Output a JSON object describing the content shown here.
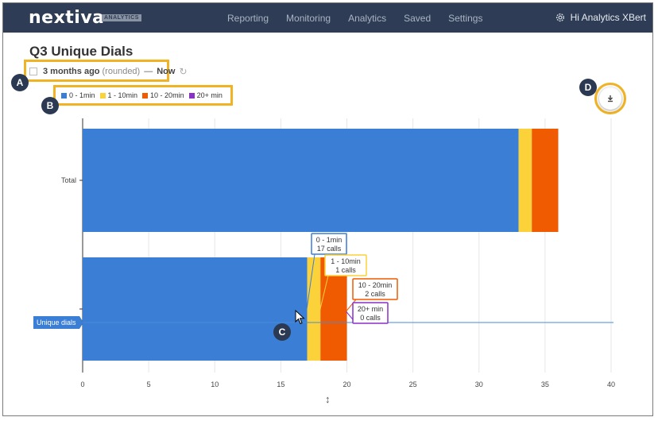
{
  "app": {
    "logo": "nextiva",
    "logo_badge": "ANALYTICS",
    "nav": [
      "Reporting",
      "Monitoring",
      "Analytics",
      "Saved",
      "Settings"
    ],
    "user": "Hi Analytics XBert"
  },
  "page": {
    "title": "Q3 Unique Dials",
    "date_from": "3 months ago",
    "date_note": "(rounded)",
    "date_sep": "—",
    "date_to": "Now"
  },
  "callouts": {
    "a": "A",
    "b": "B",
    "c": "C",
    "d": "D"
  },
  "colors": {
    "s0": "#3a7fd5",
    "s1": "#fcd23a",
    "s2": "#f05a00",
    "s3": "#8b2fc9",
    "callout": "#f0b323"
  },
  "chart_data": {
    "type": "bar",
    "orientation": "horizontal",
    "stacked": true,
    "categories": [
      "Total",
      "Unique dials"
    ],
    "series": [
      {
        "name": "0 - 1min",
        "values": [
          33,
          17
        ]
      },
      {
        "name": "1 - 10min",
        "values": [
          1,
          1
        ]
      },
      {
        "name": "10 - 20min",
        "values": [
          2,
          2
        ]
      },
      {
        "name": "20+ min",
        "values": [
          0,
          0
        ]
      }
    ],
    "xlim": [
      0,
      40
    ],
    "xticks": [
      0,
      5,
      10,
      15,
      20,
      25,
      30,
      35,
      40
    ],
    "grid": true,
    "legend_position": "top-left",
    "tooltips": [
      {
        "label": "0 - 1min",
        "value": "17 calls"
      },
      {
        "label": "1 - 10min",
        "value": "1 calls"
      },
      {
        "label": "10 - 20min",
        "value": "2 calls"
      },
      {
        "label": "20+ min",
        "value": "0 calls"
      }
    ]
  }
}
